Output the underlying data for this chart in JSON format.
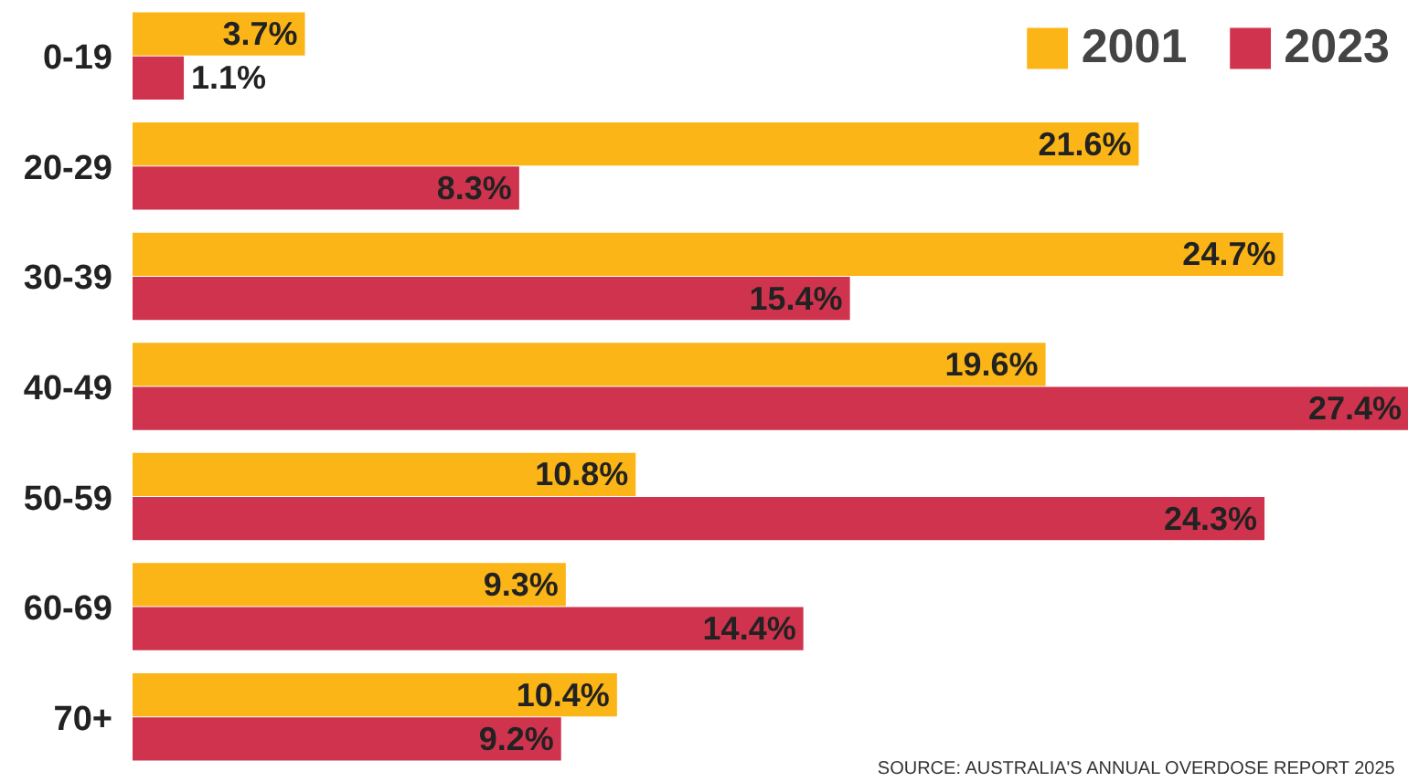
{
  "chart_data": {
    "type": "bar",
    "orientation": "horizontal",
    "categories": [
      "0-19",
      "20-29",
      "30-39",
      "40-49",
      "50-59",
      "60-69",
      "70+"
    ],
    "series": [
      {
        "name": "2001",
        "color": "#fbb516",
        "values": [
          3.7,
          21.6,
          24.7,
          19.6,
          10.8,
          9.3,
          10.4
        ],
        "value_labels": [
          "3.7%",
          "21.6%",
          "24.7%",
          "19.6%",
          "10.8%",
          "9.3%",
          "10.4%"
        ]
      },
      {
        "name": "2023",
        "color": "#d0334e",
        "values": [
          1.1,
          8.3,
          15.4,
          27.4,
          24.3,
          14.4,
          9.2
        ],
        "value_labels": [
          "1.1%",
          "8.3%",
          "15.4%",
          "27.4%",
          "24.3%",
          "14.4%",
          "9.2%"
        ]
      }
    ],
    "xlim": [
      0,
      27.4
    ],
    "legend": "top right",
    "grid": false,
    "annotations": [
      "SOURCE: AUSTRALIA'S ANNUAL OVERDOSE REPORT 2025"
    ]
  }
}
